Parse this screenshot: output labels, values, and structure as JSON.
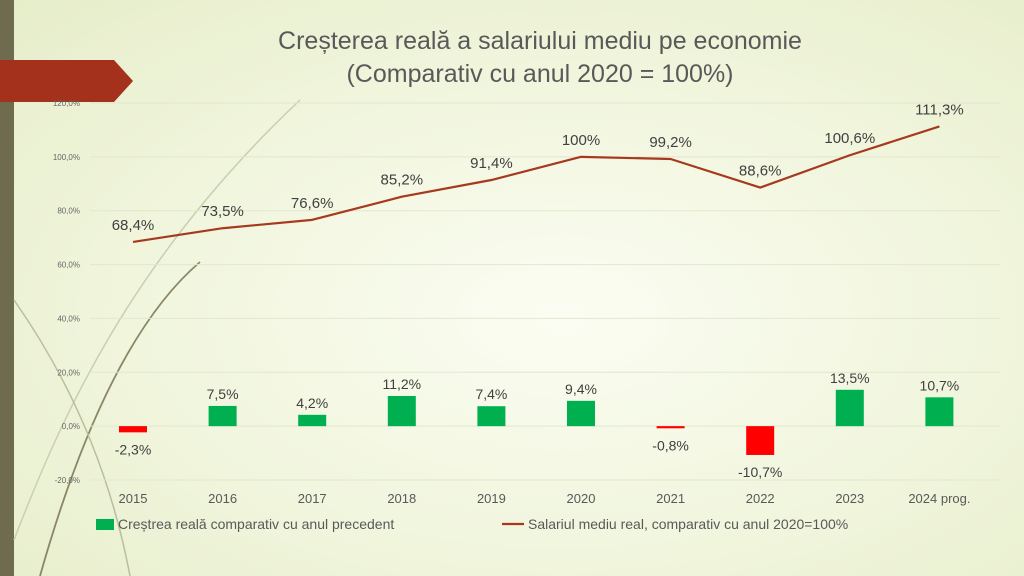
{
  "colors": {
    "side_bar": "#6f6b4e",
    "arrow": "#a4311c",
    "line_series": "#a7391f",
    "bar_positive": "#00b050",
    "bar_negative": "#ff0000",
    "text": "#404040"
  },
  "chart_data": {
    "type": "bar+line",
    "title_line1": "Creșterea reală a salariului mediu pe economie",
    "title_line2": "(Comparativ cu anul 2020 = 100%)",
    "categories": [
      "2015",
      "2016",
      "2017",
      "2018",
      "2019",
      "2020",
      "2021",
      "2022",
      "2023",
      "2024 prog."
    ],
    "y_axis": {
      "min": -20,
      "max": 120,
      "step": 20,
      "tick_labels": [
        "-20,0%",
        "0,0%",
        "20,0%",
        "40,0%",
        "60,0%",
        "80,0%",
        "100,0%",
        "120,0%"
      ]
    },
    "grid": true,
    "legend_position": "bottom",
    "series": [
      {
        "name": "Creștrea reală comparativ cu anul precedent",
        "type": "bar",
        "values": [
          -2.3,
          7.5,
          4.2,
          11.2,
          7.4,
          9.4,
          -0.8,
          -10.7,
          13.5,
          10.7
        ],
        "labels": [
          "-2,3%",
          "7,5%",
          "4,2%",
          "11,2%",
          "7,4%",
          "9,4%",
          "-0,8%",
          "-10,7%",
          "13,5%",
          "10,7%"
        ]
      },
      {
        "name": "Salariul mediu real, comparativ cu anul 2020=100%",
        "type": "line",
        "values": [
          68.4,
          73.5,
          76.6,
          85.2,
          91.4,
          100,
          99.2,
          88.6,
          100.6,
          111.3
        ],
        "labels": [
          "68,4%",
          "73,5%",
          "76,6%",
          "85,2%",
          "91,4%",
          "100%",
          "99,2%",
          "88,6%",
          "100,6%",
          "111,3%"
        ]
      }
    ]
  }
}
